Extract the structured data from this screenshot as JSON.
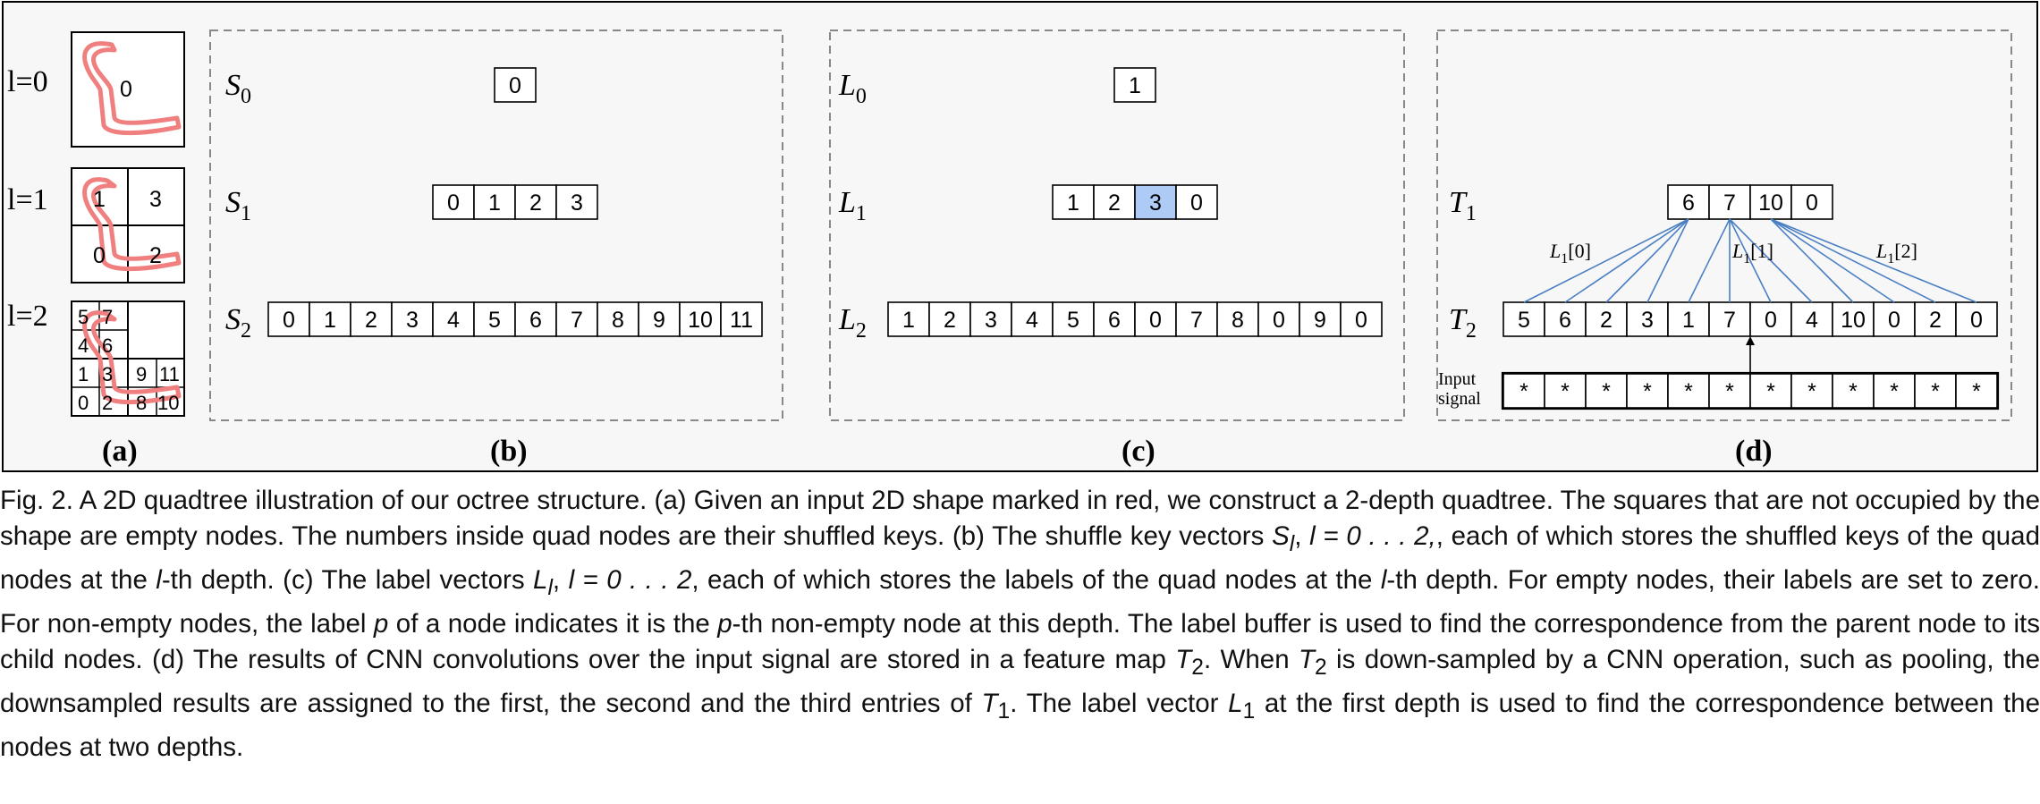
{
  "panels": {
    "a": {
      "label": "(a)",
      "levels": [
        "l=0",
        "l=1",
        "l=2"
      ],
      "l0_keys": [
        "0"
      ],
      "l1_keys": [
        "1",
        "3",
        "0",
        "2"
      ],
      "l2_keys": [
        "5",
        "7",
        "4",
        "6",
        "1",
        "3",
        "9",
        "11",
        "0",
        "2",
        "8",
        "10"
      ]
    },
    "b": {
      "label": "(b)",
      "rows": [
        {
          "name": "S",
          "sub": "0",
          "values": [
            "0"
          ]
        },
        {
          "name": "S",
          "sub": "1",
          "values": [
            "0",
            "1",
            "2",
            "3"
          ]
        },
        {
          "name": "S",
          "sub": "2",
          "values": [
            "0",
            "1",
            "2",
            "3",
            "4",
            "5",
            "6",
            "7",
            "8",
            "9",
            "10",
            "11"
          ]
        }
      ]
    },
    "c": {
      "label": "(c)",
      "highlight_color": "#aecbf5",
      "rows": [
        {
          "name": "L",
          "sub": "0",
          "values": [
            "1"
          ]
        },
        {
          "name": "L",
          "sub": "1",
          "values": [
            "1",
            "2",
            "3",
            "0"
          ],
          "highlight_index": 2
        },
        {
          "name": "L",
          "sub": "2",
          "values": [
            "1",
            "2",
            "3",
            "4",
            "5",
            "6",
            "0",
            "7",
            "8",
            "0",
            "9",
            "0"
          ]
        }
      ]
    },
    "d": {
      "label": "(d)",
      "line_color": "#4a7fc4",
      "t1": {
        "name": "T",
        "sub": "1",
        "values": [
          "6",
          "7",
          "10",
          "0"
        ]
      },
      "t2": {
        "name": "T",
        "sub": "2",
        "values": [
          "5",
          "6",
          "2",
          "3",
          "1",
          "7",
          "0",
          "4",
          "10",
          "0",
          "2",
          "0"
        ]
      },
      "edge_labels": [
        {
          "name": "L",
          "sub": "1",
          "idx": "[0]"
        },
        {
          "name": "L",
          "sub": "1",
          "idx": "[1]"
        },
        {
          "name": "L",
          "sub": "1",
          "idx": "[2]"
        }
      ],
      "input_label_line1": "Input",
      "input_label_line2": "signal",
      "input_values": [
        "*",
        "*",
        "*",
        "*",
        "*",
        "*",
        "*",
        "*",
        "*",
        "*",
        "*",
        "*"
      ]
    }
  },
  "caption": {
    "fig_label": "Fig. 2.",
    "text_1": "A 2D quadtree illustration of our octree structure. (a) Given an input 2D shape marked in red, we construct a 2-depth quadtree. The squares that are not occupied by the shape are empty nodes. The numbers inside quad nodes are their shuffled keys. (b) The shuffle key vectors ",
    "sym_S": "S",
    "sym_l": "l",
    "text_2": ", ",
    "text_l_range": "l = 0 . . . 2,",
    "text_3": ", each of which stores the shuffled keys of the quad nodes at the ",
    "text_4": "-th depth. (c) The label vectors ",
    "sym_L": "L",
    "text_5": ", ",
    "text_l_range2": "l = 0 . . . 2",
    "text_6": ", each of which stores the labels of the quad nodes at the ",
    "text_7": "-th depth. For empty nodes, their labels are set to zero. For non-empty nodes, the label ",
    "sym_p": "p",
    "text_8": " of a node indicates it is the ",
    "text_9": "-th non-empty node at this depth. The label buffer is used to find the correspondence from the parent node to its child nodes. (d) The results of CNN convolutions over the input signal are stored in a feature map ",
    "sym_T": "T",
    "sub_2": "2",
    "text_10": ". When ",
    "text_11": " is down-sampled by a CNN operation, such as pooling, the downsampled results are assigned to the first, the second and the third entries of ",
    "sub_1": "1",
    "text_12": ". The label vector ",
    "text_13": " at the first depth is used to find the correspondence between the nodes at two depths."
  }
}
